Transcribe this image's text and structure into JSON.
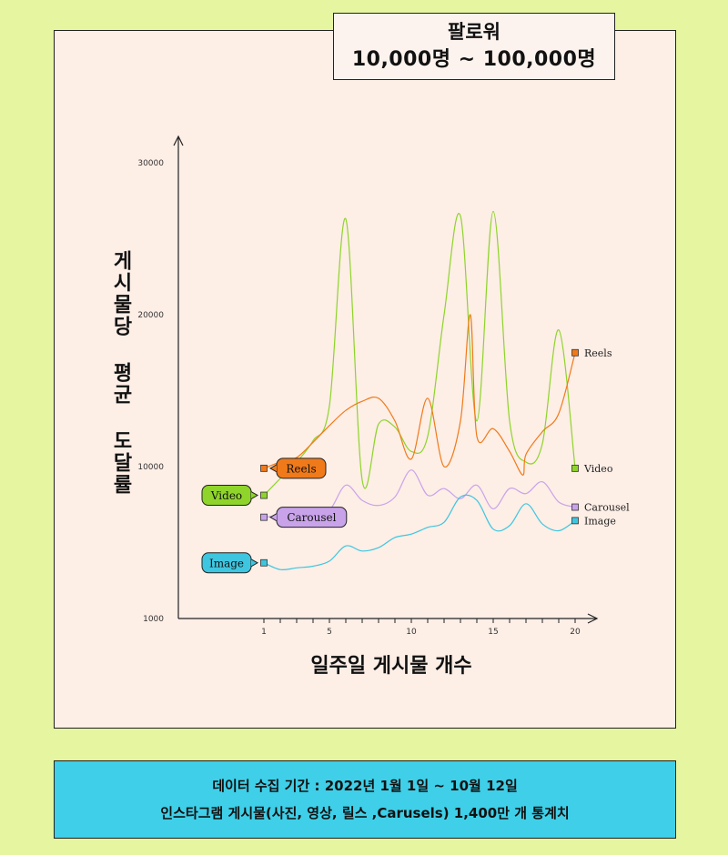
{
  "header": {
    "line1": "팔로워",
    "line2": "10,000명 ~ 100,000명"
  },
  "footer": {
    "line1": "데이터 수집 기간 : 2022년 1월 1일 ~ 10월 12일",
    "line2": "인스타그램 게시물(사진, 영상, 릴스 ,Carusels) 1,400만 개 통계치"
  },
  "chart_data": {
    "type": "line",
    "xlabel": "일주일 게시물 개수",
    "ylabel": "게시물당 평균 도달률",
    "x_ticks": [
      1,
      5,
      10,
      15,
      20
    ],
    "y_ticks": [
      1000,
      10000,
      20000,
      30000
    ],
    "xlim": [
      1,
      20
    ],
    "ylim": [
      1000,
      30000
    ],
    "colors": {
      "Reels": "#f07a1a",
      "Video": "#8ed42a",
      "Carousel": "#c9a3ea",
      "Image": "#3ec6e0"
    },
    "series": [
      {
        "name": "Reels",
        "values": [
          [
            1,
            9900
          ],
          [
            2,
            10300
          ],
          [
            3,
            10600
          ],
          [
            4,
            11600
          ],
          [
            5,
            12700
          ],
          [
            6,
            13700
          ],
          [
            7,
            14300
          ],
          [
            8,
            14500
          ],
          [
            9,
            13000
          ],
          [
            10,
            10500
          ],
          [
            11,
            14500
          ],
          [
            12,
            10000
          ],
          [
            13,
            13000
          ],
          [
            13.6,
            20000
          ],
          [
            14,
            12000
          ],
          [
            15,
            12500
          ],
          [
            16,
            11000
          ],
          [
            16.8,
            9500
          ],
          [
            17,
            10800
          ],
          [
            18,
            12300
          ],
          [
            19,
            13500
          ],
          [
            20,
            17500
          ]
        ]
      },
      {
        "name": "Video",
        "values": [
          [
            1,
            8300
          ],
          [
            2,
            9300
          ],
          [
            3,
            10300
          ],
          [
            4,
            11700
          ],
          [
            5,
            14000
          ],
          [
            6,
            26300
          ],
          [
            7,
            9200
          ],
          [
            8,
            12800
          ],
          [
            9,
            12600
          ],
          [
            10,
            11000
          ],
          [
            11,
            12000
          ],
          [
            12,
            20000
          ],
          [
            13,
            26500
          ],
          [
            14,
            13000
          ],
          [
            15,
            26800
          ],
          [
            16,
            13000
          ],
          [
            17,
            10300
          ],
          [
            18,
            11500
          ],
          [
            19,
            19000
          ],
          [
            20,
            9900
          ]
        ]
      },
      {
        "name": "Carousel",
        "values": [
          [
            1,
            7000
          ],
          [
            2,
            7100
          ],
          [
            3,
            7150
          ],
          [
            4,
            7200
          ],
          [
            5,
            7400
          ],
          [
            6,
            8900
          ],
          [
            7,
            8000
          ],
          [
            8,
            7700
          ],
          [
            9,
            8200
          ],
          [
            10,
            9800
          ],
          [
            11,
            8300
          ],
          [
            12,
            8700
          ],
          [
            13,
            8100
          ],
          [
            14,
            8900
          ],
          [
            15,
            7500
          ],
          [
            16,
            8700
          ],
          [
            17,
            8400
          ],
          [
            18,
            9100
          ],
          [
            19,
            7900
          ],
          [
            20,
            7600
          ]
        ]
      },
      {
        "name": "Image",
        "values": [
          [
            1,
            4300
          ],
          [
            2,
            3900
          ],
          [
            3,
            4000
          ],
          [
            4,
            4100
          ],
          [
            5,
            4400
          ],
          [
            6,
            5300
          ],
          [
            7,
            5000
          ],
          [
            8,
            5200
          ],
          [
            9,
            5800
          ],
          [
            10,
            6000
          ],
          [
            11,
            6400
          ],
          [
            12,
            6700
          ],
          [
            13,
            8200
          ],
          [
            14,
            8000
          ],
          [
            15,
            6300
          ],
          [
            16,
            6500
          ],
          [
            17,
            7800
          ],
          [
            18,
            6600
          ],
          [
            19,
            6200
          ],
          [
            20,
            6800
          ]
        ]
      }
    ]
  }
}
